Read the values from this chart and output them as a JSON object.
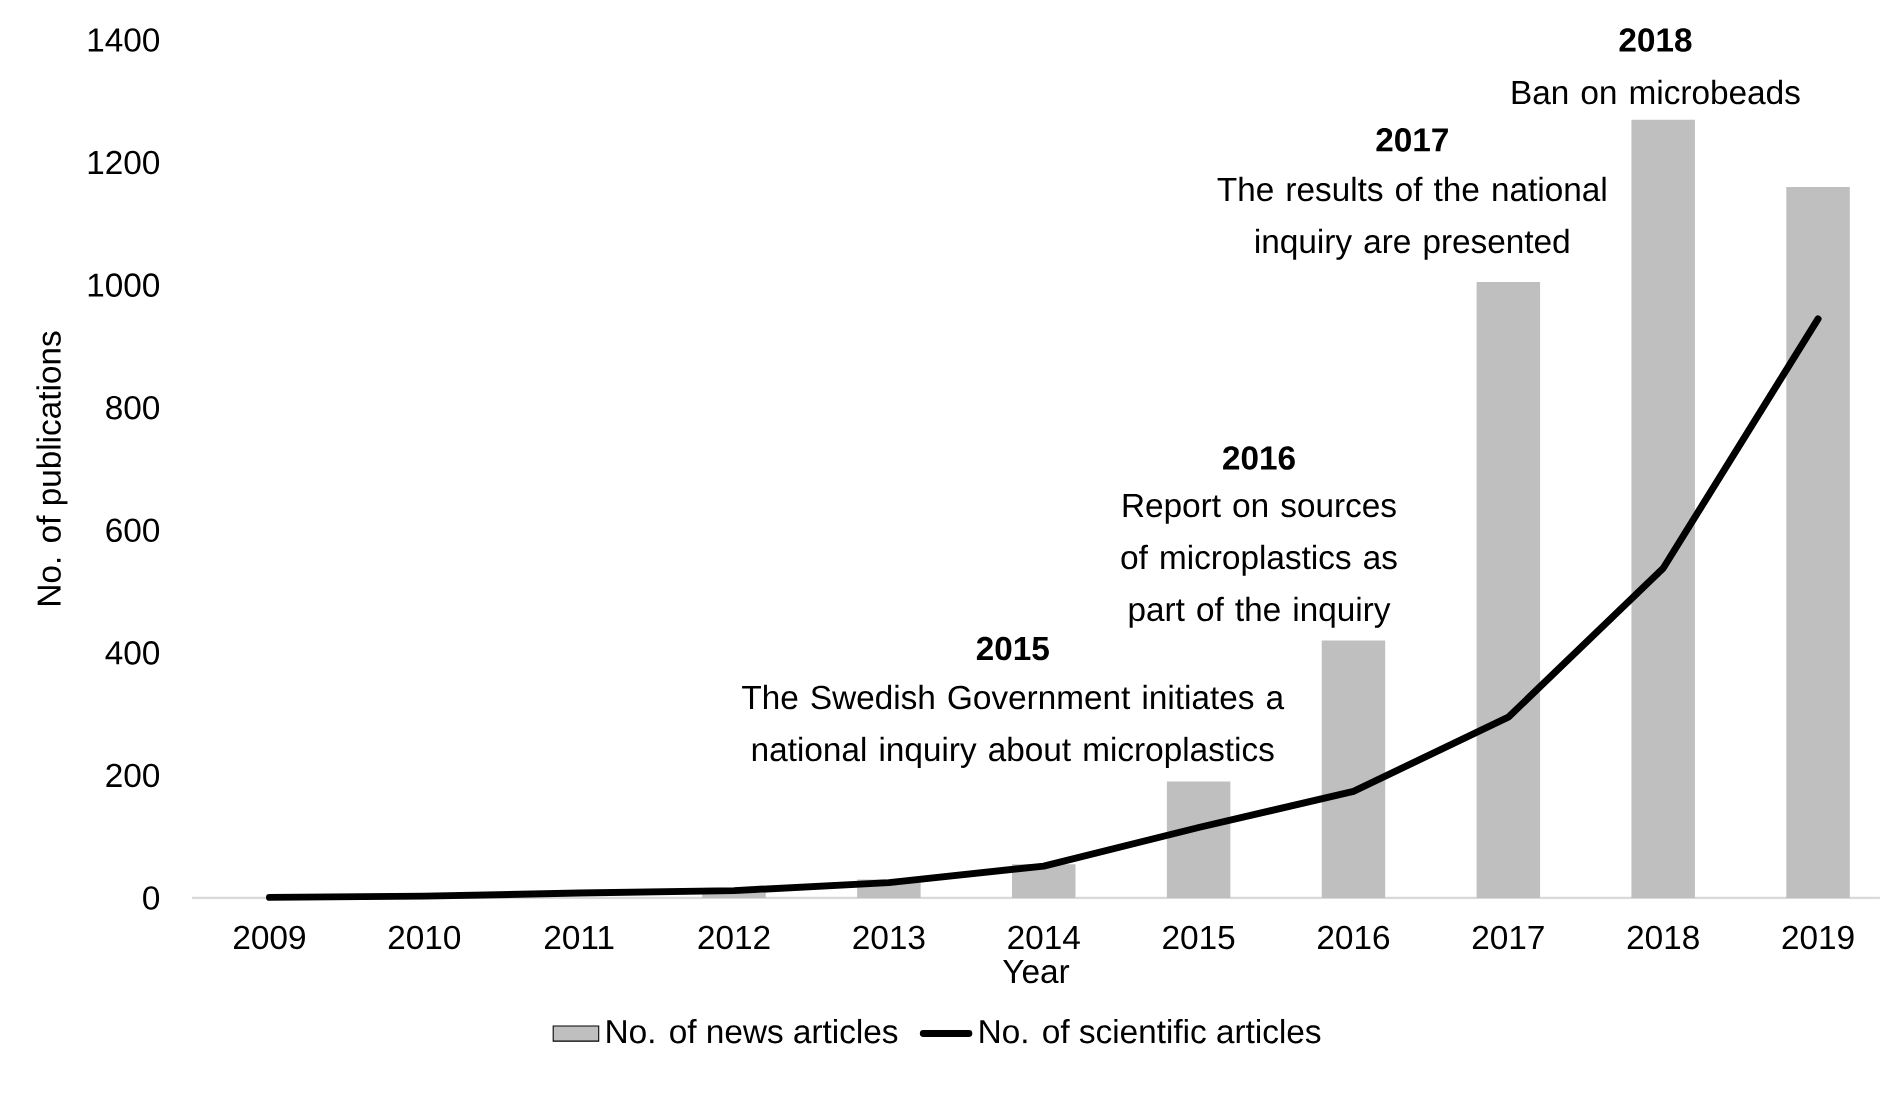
{
  "chart_data": {
    "type": "bar",
    "xlabel": "Year",
    "ylabel": "No. of publications",
    "categories": [
      "2009",
      "2010",
      "2011",
      "2012",
      "2013",
      "2014",
      "2015",
      "2016",
      "2017",
      "2018",
      "2019"
    ],
    "series": [
      {
        "name": "No. of news articles",
        "color": "#bfbfbf",
        "values": [
          null,
          null,
          null,
          8,
          30,
          55,
          190,
          420,
          1005,
          1270,
          1160
        ]
      },
      {
        "name": "No. of scientific articles",
        "type": "line",
        "color": "#000000",
        "values": [
          1,
          3,
          8,
          12,
          25,
          52,
          115,
          174,
          295,
          538,
          945
        ]
      }
    ],
    "ylim": [
      0,
      1400
    ],
    "yticks": [
      0,
      200,
      400,
      600,
      800,
      1000,
      1200,
      1400
    ],
    "legend": "bottom",
    "annotations": [
      "2015",
      "The Swedish Government initiates a national inquiry about microplastics",
      "2016",
      "Report on sources of microplastics as part of the inquiry",
      "2017",
      "The results of the national inquiry are presented",
      "2018",
      "Ban on microbeads"
    ]
  }
}
